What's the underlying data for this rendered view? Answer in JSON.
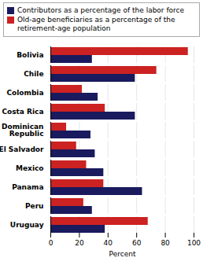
{
  "chart_data": {
    "type": "bar",
    "orientation": "horizontal",
    "categories": [
      "Bolivia",
      "Chile",
      "Colombia",
      "Costa Rica",
      "Dominican\nRepublic",
      "El Salvador",
      "Mexico",
      "Panama",
      "Peru",
      "Uruguay"
    ],
    "series": [
      {
        "name": "Contributors as a percentage of the labor force",
        "color": "#1a1a5e",
        "values": [
          29,
          59,
          33,
          59,
          28,
          31,
          37,
          64,
          29,
          38
        ]
      },
      {
        "name": "Old-age beneficiaries as a percentage of the\nretirement-age population",
        "color": "#cc2222",
        "values": [
          96,
          74,
          22,
          38,
          11,
          18,
          25,
          37,
          23,
          68
        ]
      }
    ],
    "xlabel": "Percent",
    "xlim": [
      0,
      100
    ],
    "xticks": [
      0,
      20,
      40,
      60,
      80,
      100
    ],
    "grid": true,
    "legend": "upper left"
  }
}
